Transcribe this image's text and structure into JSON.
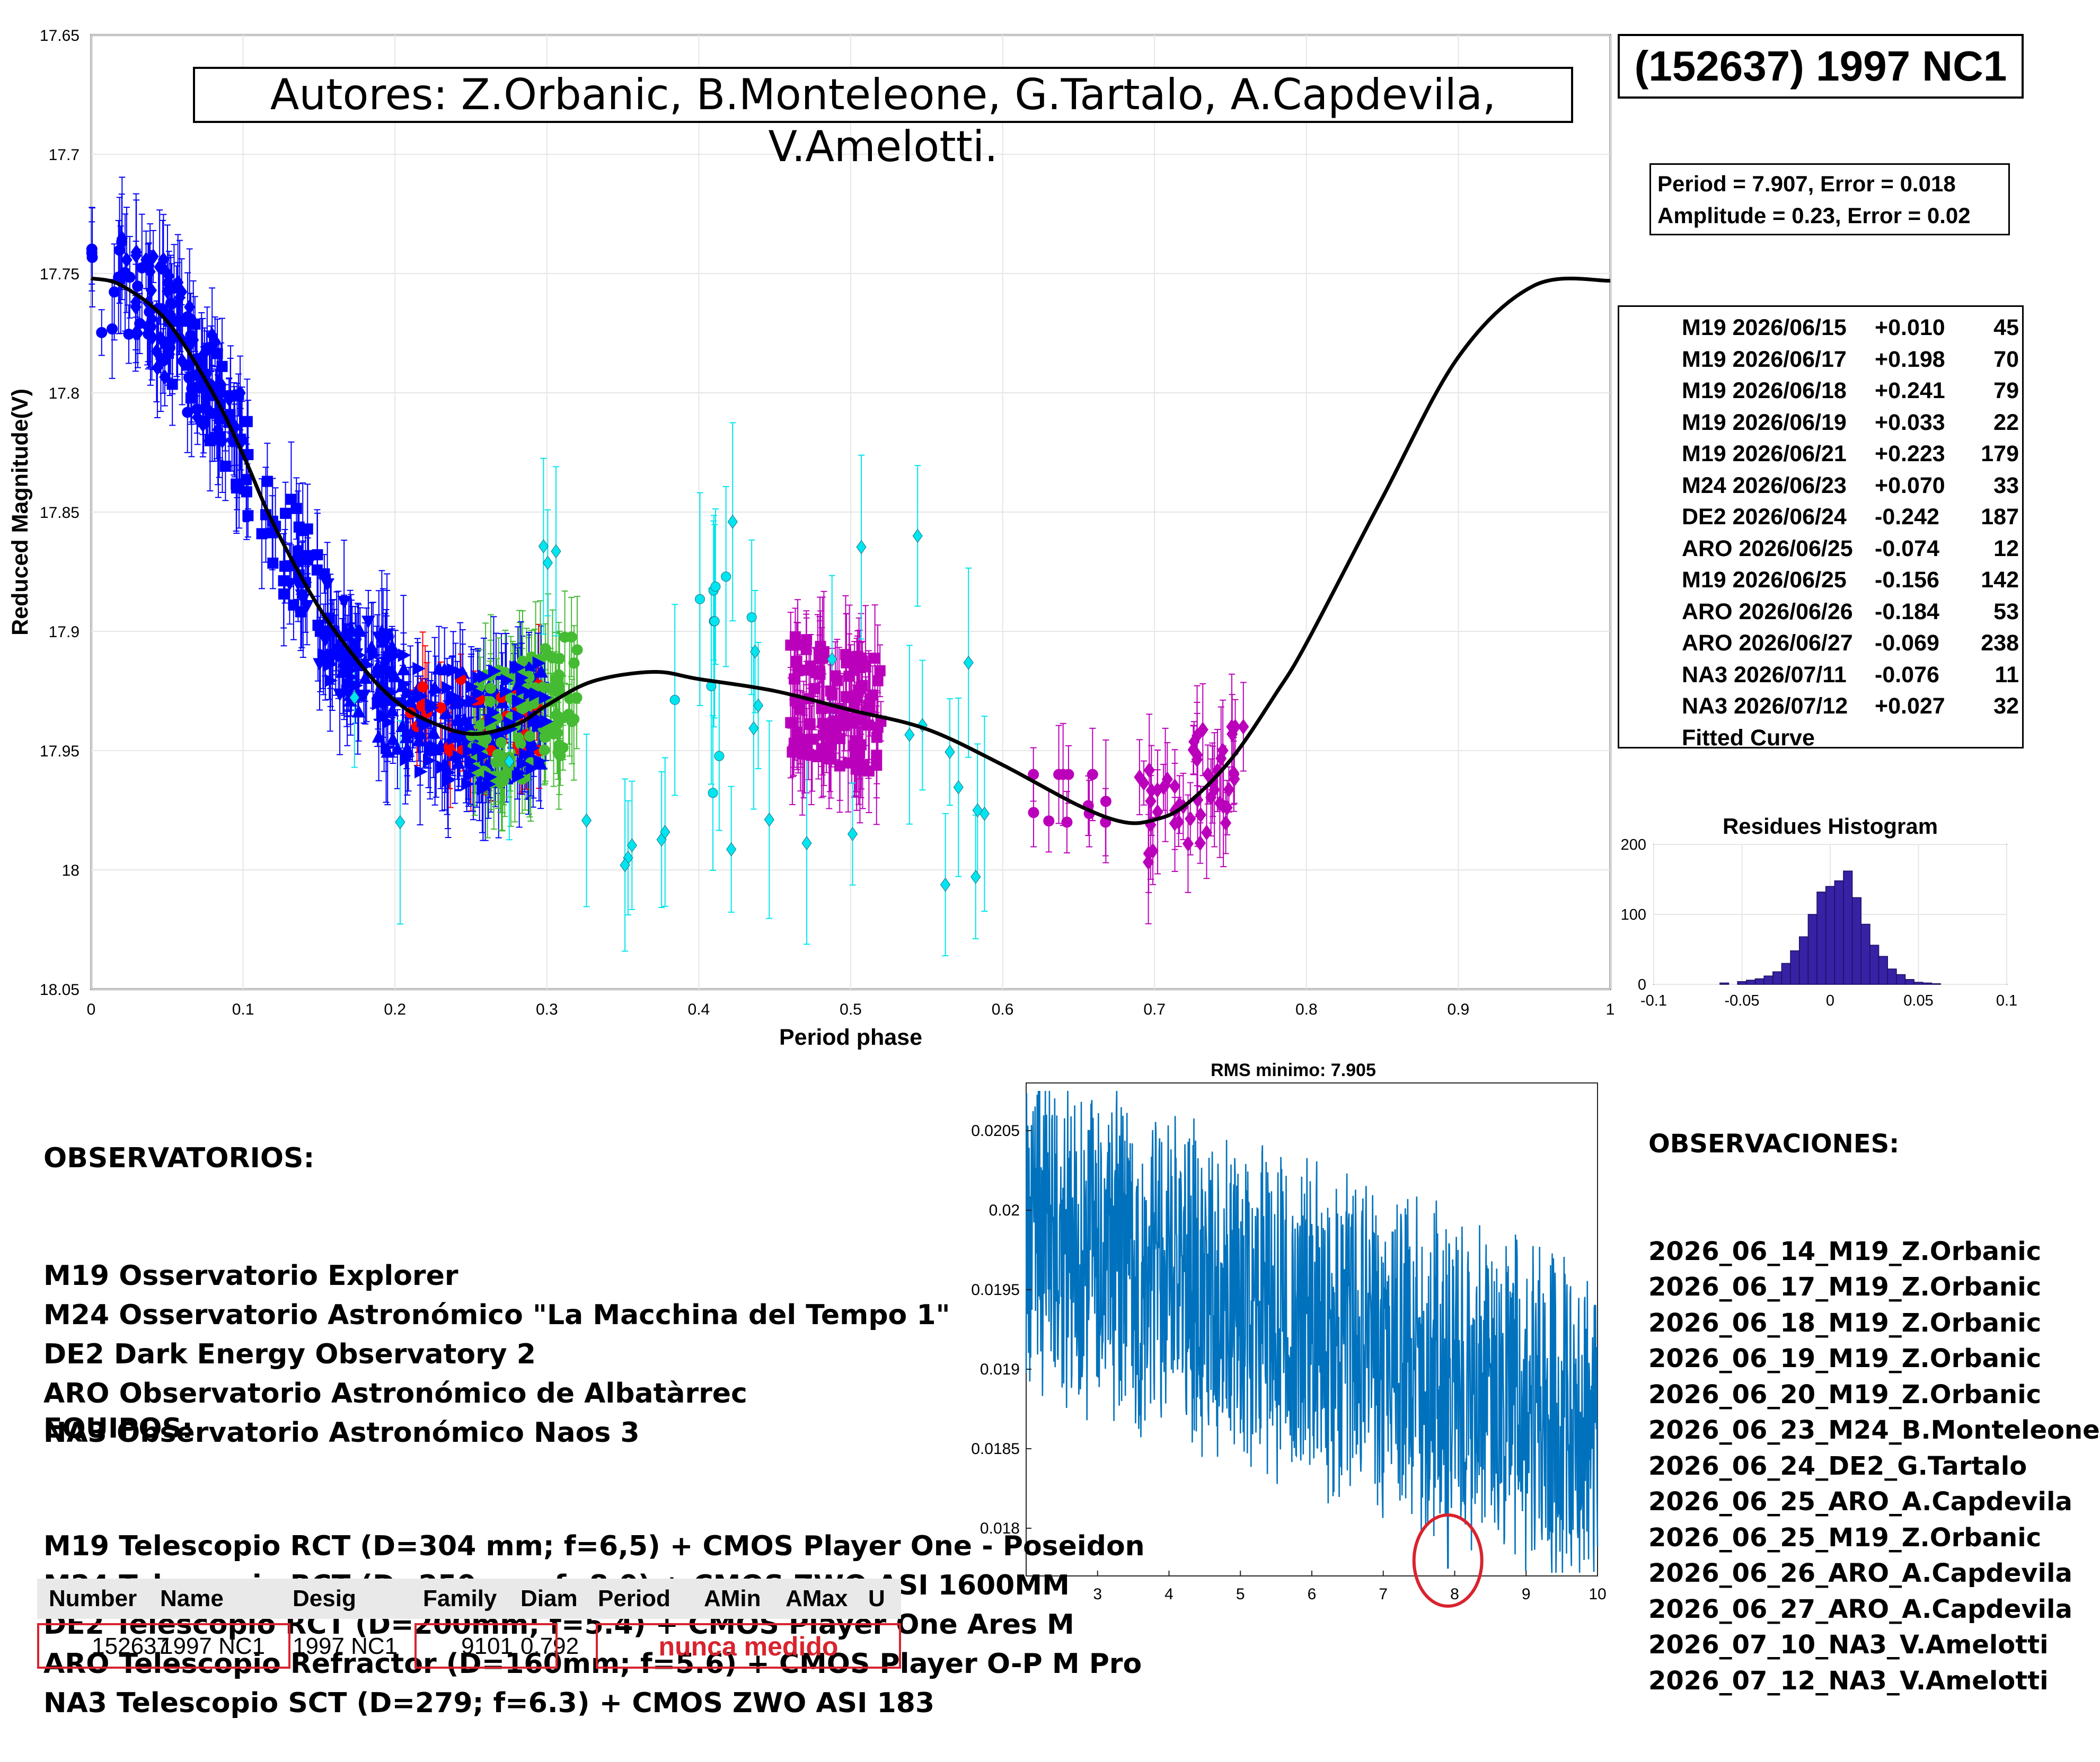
{
  "header": {
    "authors": "Autores: Z.Orbanic, B.Monteleone, G.Tartalo, A.Capdevila, V.Amelotti.",
    "object": "(152637) 1997 NC1",
    "period_line": "Period =  7.907, Error = 0.018",
    "amplitude_line": "Amplitude = 0.23, Error = 0.02"
  },
  "chart_data": [
    {
      "type": "scatter",
      "xlabel": "Period phase",
      "ylabel": "Reduced Magnitude(V)",
      "xlim": [
        0,
        1
      ],
      "ylim": [
        18.05,
        17.65
      ],
      "y_reversed": true,
      "xticks": [
        "0",
        "0.1",
        "0.2",
        "0.3",
        "0.4",
        "0.5",
        "0.6",
        "0.7",
        "0.8",
        "0.9",
        "1"
      ],
      "yticks": [
        "17.65",
        "17.7",
        "17.75",
        "17.8",
        "17.85",
        "17.9",
        "17.95",
        "18",
        "18.05"
      ],
      "grid": true,
      "legend_position": "right",
      "series": [
        {
          "name": "M19 2026/06/15",
          "offset": "+0.010",
          "count": "45",
          "color": "#0000ff",
          "marker": "circle",
          "phase_range": [
            0.0,
            0.08
          ],
          "mag_range": [
            17.7,
            17.84
          ]
        },
        {
          "name": "M19 2026/06/17",
          "offset": "+0.198",
          "count": "70",
          "color": "#0000ff",
          "marker": "diamond",
          "phase_range": [
            0.02,
            0.1
          ],
          "mag_range": [
            17.73,
            17.82
          ]
        },
        {
          "name": "M19 2026/06/18",
          "offset": "+0.241",
          "count": "79",
          "color": "#0000ff",
          "marker": "square",
          "phase_range": [
            0.05,
            0.16
          ],
          "mag_range": [
            17.77,
            17.9
          ]
        },
        {
          "name": "M19 2026/06/19",
          "offset": "+0.033",
          "count": "22",
          "color": "#0000ff",
          "marker": "triangle-down",
          "phase_range": [
            0.13,
            0.2
          ],
          "mag_range": [
            17.88,
            17.93
          ]
        },
        {
          "name": "M19 2026/06/21",
          "offset": "+0.223",
          "count": "179",
          "color": "#0000ff",
          "marker": "triangle-up",
          "phase_range": [
            0.16,
            0.3
          ],
          "mag_range": [
            17.9,
            17.97
          ]
        },
        {
          "name": "M24 2026/06/23",
          "offset": "+0.070",
          "count": "33",
          "color": "#ff0000",
          "marker": "circle",
          "phase_range": [
            0.21,
            0.3
          ],
          "mag_range": [
            17.92,
            17.95
          ]
        },
        {
          "name": "DE2 2026/06/24",
          "offset": "-0.242",
          "count": "187",
          "color": "#44bb33",
          "marker": "circle",
          "phase_range": [
            0.25,
            0.32
          ],
          "mag_range": [
            17.89,
            17.97
          ]
        },
        {
          "name": "ARO 2026/06/25",
          "offset": "-0.074",
          "count": "12",
          "color": "#bb00bb",
          "marker": "circle",
          "phase_range": [
            0.62,
            0.68
          ],
          "mag_range": [
            17.96,
            17.98
          ]
        },
        {
          "name": "M19 2026/06/25",
          "offset": "-0.156",
          "count": "142",
          "color": "#0000ff",
          "marker": "triangle-right",
          "phase_range": [
            0.15,
            0.3
          ],
          "mag_range": [
            17.91,
            17.97
          ]
        },
        {
          "name": "ARO 2026/06/26",
          "offset": "-0.184",
          "count": "53",
          "color": "#bb00bb",
          "marker": "diamond",
          "phase_range": [
            0.69,
            0.76
          ],
          "mag_range": [
            17.94,
            18.01
          ]
        },
        {
          "name": "ARO 2026/06/27",
          "offset": "-0.069",
          "count": "238",
          "color": "#bb00bb",
          "marker": "square",
          "phase_range": [
            0.46,
            0.52
          ],
          "mag_range": [
            17.88,
            17.96
          ]
        },
        {
          "name": "NA3 2026/07/11",
          "offset": "-0.076",
          "count": "11",
          "color": "#00e5ee",
          "marker": "circle",
          "phase_range": [
            0.38,
            0.44
          ],
          "mag_range": [
            17.87,
            17.97
          ]
        },
        {
          "name": "NA3 2026/07/12",
          "offset": "+0.027",
          "count": "32",
          "color": "#00e5ee",
          "marker": "diamond",
          "phase_range": [
            0.16,
            0.59
          ],
          "mag_range": [
            17.85,
            18.01
          ]
        }
      ],
      "fitted_curve": {
        "name": "Fitted Curve",
        "x": [
          0.0,
          0.02,
          0.05,
          0.08,
          0.1,
          0.12,
          0.15,
          0.18,
          0.2,
          0.22,
          0.25,
          0.28,
          0.3,
          0.33,
          0.37,
          0.4,
          0.45,
          0.5,
          0.55,
          0.6,
          0.65,
          0.68,
          0.7,
          0.72,
          0.75,
          0.78,
          0.8,
          0.85,
          0.9,
          0.95,
          1.0
        ],
        "y": [
          17.752,
          17.755,
          17.77,
          17.8,
          17.826,
          17.855,
          17.89,
          17.916,
          17.929,
          17.937,
          17.943,
          17.939,
          17.931,
          17.921,
          17.917,
          17.92,
          17.925,
          17.933,
          17.941,
          17.956,
          17.973,
          17.98,
          17.979,
          17.973,
          17.954,
          17.926,
          17.905,
          17.844,
          17.785,
          17.755,
          17.753
        ]
      }
    },
    {
      "type": "bar",
      "title": "Residues Histogram",
      "xlim": [
        -0.1,
        0.1
      ],
      "ylim": [
        0,
        200
      ],
      "xticks": [
        "-0.1",
        "-0.05",
        "0",
        "0.05",
        "0.1"
      ],
      "yticks": [
        "0",
        "100",
        "200"
      ],
      "color": "#3722a5",
      "bin_centers": [
        -0.06,
        -0.05,
        -0.045,
        -0.04,
        -0.035,
        -0.03,
        -0.025,
        -0.02,
        -0.015,
        -0.01,
        -0.005,
        0.0,
        0.005,
        0.01,
        0.015,
        0.02,
        0.025,
        0.03,
        0.035,
        0.04,
        0.045,
        0.05,
        0.055,
        0.06
      ],
      "values": [
        2,
        4,
        6,
        8,
        12,
        18,
        30,
        48,
        68,
        100,
        132,
        140,
        148,
        162,
        124,
        86,
        56,
        40,
        22,
        14,
        7,
        3,
        2,
        1
      ]
    },
    {
      "type": "line",
      "title": "RMS minimo: 7.905",
      "xlim": [
        2,
        10
      ],
      "ylim": [
        0.0177,
        0.0208
      ],
      "xticks": [
        "3",
        "4",
        "5",
        "6",
        "7",
        "8",
        "9",
        "10"
      ],
      "yticks": [
        "0.018",
        "0.0185",
        "0.019",
        "0.0195",
        "0.02",
        "0.0205"
      ],
      "color": "#0072bd",
      "minimum": {
        "x": 7.905,
        "y": 0.01775
      }
    }
  ],
  "notes": {
    "observatories_title": "OBSERVATORIOS:",
    "observatories": [
      "M19 Osservatorio Explorer",
      "M24 Osservatorio Astronómico \"La Macchina del Tempo 1\"",
      "DE2 Dark Energy Observatory 2",
      "ARO Observatorio Astronómico de Albatàrrec",
      "NA3 Observatorio Astronómico Naos 3"
    ],
    "equipment_title": "EQUIPOS:",
    "equipment": [
      "M19 Telescopio RCT (D=304 mm; f=6,5) + CMOS Player One - Poseidon",
      "M24 Telescopio RCT (D=250mm; f=8.0) + CMOS ZWO ASI 1600MM",
      "DE2 Telescopio RCT (D=200mm; f=5.4) + CMOS Player One Ares M",
      "ARO Telescopio Refractor (D=160mm; f=5.6) + CMOS Player O-P M Pro",
      "NA3 Telescopio SCT (D=279; f=6.3) + CMOS ZWO ASI 183"
    ],
    "observations_title": "OBSERVACIONES:",
    "observations": [
      "2026_06_14_M19_Z.Orbanic",
      "2026_06_17_M19_Z.Orbanic",
      "2026_06_18_M19_Z.Orbanic",
      "2026_06_19_M19_Z.Orbanic",
      "2026_06_20_M19_Z.Orbanic",
      "2026_06_23_M24_B.Monteleone",
      "2026_06_24_DE2_G.Tartalo",
      "2026_06_25_ARO_A.Capdevila",
      "2026_06_25_M19_Z.Orbanic",
      "2026_06_26_ARO_A.Capdevila",
      "2026_06_27_ARO_A.Capdevila",
      "2026_07_10_NA3_V.Amelotti",
      "2026_07_12_NA3_V.Amelotti"
    ]
  },
  "table": {
    "headers": [
      "Number",
      "Name",
      "Desig",
      "Family",
      "Diam",
      "Period",
      "AMin",
      "AMax",
      "U"
    ],
    "row": {
      "number": "152637",
      "name": "1997 NC1",
      "desig": "1997 NC1",
      "family": "9101",
      "diam": "0.792",
      "period_note": "nunca medido"
    },
    "highlight_color": "#d9232e"
  }
}
